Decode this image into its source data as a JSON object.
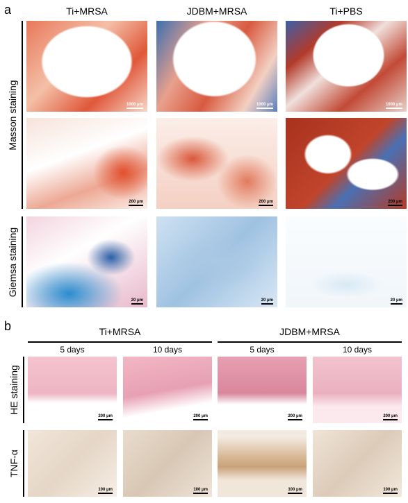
{
  "panel_a": {
    "label": "a",
    "columns": [
      "Ti+MRSA",
      "JDBM+MRSA",
      "Ti+PBS"
    ],
    "groups": [
      {
        "label": "Masson staining",
        "scale_bars": [
          [
            "1000 μm",
            "1000 μm",
            "1000 μm"
          ],
          [
            "200 μm",
            "200 μm",
            "200 μm"
          ]
        ]
      },
      {
        "label": "Giemsa staining",
        "scale_bars": [
          [
            "20 μm",
            "20 μm",
            "20 μm"
          ]
        ]
      }
    ]
  },
  "panel_b": {
    "label": "b",
    "groups": [
      {
        "label": "Ti+MRSA",
        "days": [
          "5 days",
          "10 days"
        ]
      },
      {
        "label": "JDBM+MRSA",
        "days": [
          "5 days",
          "10 days"
        ]
      }
    ],
    "rows": [
      {
        "label": "HE staining",
        "scale_bars": [
          "200 μm",
          "200 μm",
          "200 μm",
          "200 μm"
        ]
      },
      {
        "label": "TNF-α",
        "scale_bars": [
          "100 μm",
          "100 μm",
          "100 μm",
          "100 μm"
        ]
      }
    ]
  }
}
